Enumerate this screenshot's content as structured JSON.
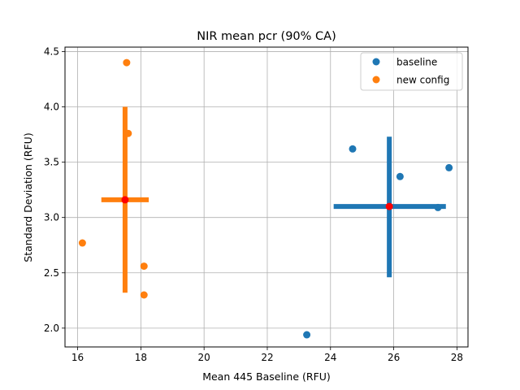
{
  "chart_data": {
    "type": "scatter",
    "title": "NIR mean pcr (90% CA)",
    "xlabel": "Mean 445 Baseline (RFU)",
    "ylabel": "Standard Deviation (RFU)",
    "xlim": [
      15.6,
      28.35
    ],
    "ylim": [
      1.83,
      4.54
    ],
    "xticks": [
      16,
      18,
      20,
      22,
      24,
      26,
      28
    ],
    "yticks": [
      2.0,
      2.5,
      3.0,
      3.5,
      4.0,
      4.5
    ],
    "xtick_labels": [
      "16",
      "18",
      "20",
      "22",
      "24",
      "26",
      "28"
    ],
    "ytick_labels": [
      "2.0",
      "2.5",
      "3.0",
      "3.5",
      "4.0",
      "4.5"
    ],
    "grid": true,
    "legend_position": "top-right",
    "series": [
      {
        "name": "baseline",
        "color": "#1f77b4",
        "points": [
          {
            "x": 24.7,
            "y": 3.62
          },
          {
            "x": 26.2,
            "y": 3.37
          },
          {
            "x": 27.75,
            "y": 3.45
          },
          {
            "x": 27.4,
            "y": 3.09
          },
          {
            "x": 23.25,
            "y": 1.94
          }
        ],
        "mean": {
          "x": 25.86,
          "y": 3.1
        },
        "ci_x": [
          24.1,
          27.65
        ],
        "ci_y": [
          2.46,
          3.73
        ]
      },
      {
        "name": "new config",
        "color": "#ff7f0e",
        "points": [
          {
            "x": 17.55,
            "y": 4.4
          },
          {
            "x": 17.6,
            "y": 3.76
          },
          {
            "x": 16.15,
            "y": 2.77
          },
          {
            "x": 18.1,
            "y": 2.56
          },
          {
            "x": 18.1,
            "y": 2.3
          }
        ],
        "mean": {
          "x": 17.5,
          "y": 3.16
        },
        "ci_x": [
          16.75,
          18.25
        ],
        "ci_y": [
          2.32,
          4.0
        ]
      }
    ],
    "mean_marker_color": "#ff0000"
  }
}
